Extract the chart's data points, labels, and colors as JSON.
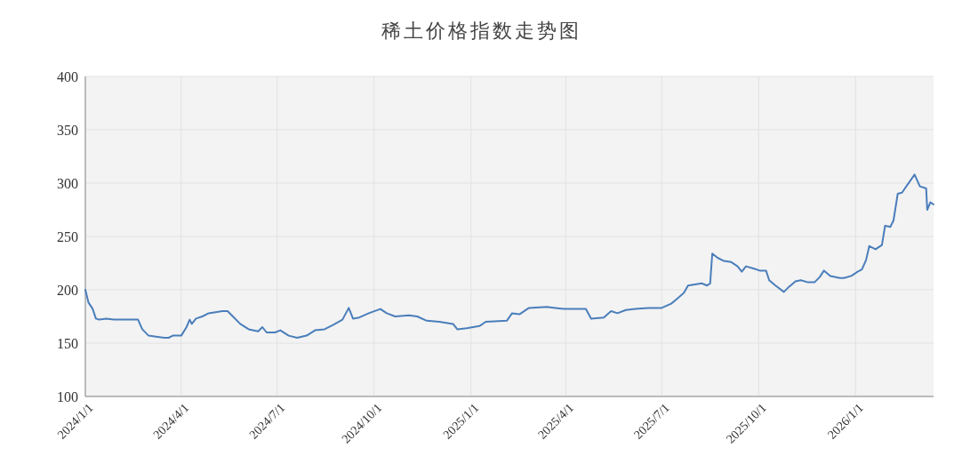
{
  "chart_data": {
    "type": "line",
    "title": "稀土价格指数走势图",
    "x": [
      "2024-01-01",
      "2024-01-04",
      "2024-01-08",
      "2024-01-11",
      "2024-01-14",
      "2024-01-21",
      "2024-01-28",
      "2024-02-20",
      "2024-02-24",
      "2024-03-01",
      "2024-03-08",
      "2024-03-16",
      "2024-03-20",
      "2024-03-24",
      "2024-04-01",
      "2024-04-06",
      "2024-04-09",
      "2024-04-11",
      "2024-04-15",
      "2024-04-21",
      "2024-04-27",
      "2024-05-10",
      "2024-05-15",
      "2024-05-20",
      "2024-05-27",
      "2024-06-04",
      "2024-06-13",
      "2024-06-17",
      "2024-06-21",
      "2024-06-29",
      "2024-07-04",
      "2024-07-12",
      "2024-07-20",
      "2024-07-29",
      "2024-08-06",
      "2024-08-15",
      "2024-08-23",
      "2024-09-01",
      "2024-09-07",
      "2024-09-11",
      "2024-09-17",
      "2024-09-26",
      "2024-10-07",
      "2024-10-13",
      "2024-10-21",
      "2024-11-03",
      "2024-11-11",
      "2024-11-20",
      "2024-12-02",
      "2024-12-15",
      "2024-12-19",
      "2024-12-28",
      "2025-01-09",
      "2025-01-15",
      "2025-02-04",
      "2025-02-09",
      "2025-02-16",
      "2025-02-25",
      "2025-03-14",
      "2025-03-22",
      "2025-03-30",
      "2025-04-20",
      "2025-04-25",
      "2025-05-07",
      "2025-05-14",
      "2025-05-20",
      "2025-05-28",
      "2025-06-06",
      "2025-06-18",
      "2025-07-01",
      "2025-07-10",
      "2025-07-15",
      "2025-07-22",
      "2025-07-26",
      "2025-08-08",
      "2025-08-13",
      "2025-08-16",
      "2025-08-18",
      "2025-08-23",
      "2025-08-29",
      "2025-09-05",
      "2025-09-11",
      "2025-09-15",
      "2025-09-19",
      "2025-09-26",
      "2025-10-02",
      "2025-10-08",
      "2025-10-11",
      "2025-10-17",
      "2025-10-25",
      "2025-10-30",
      "2025-11-05",
      "2025-11-10",
      "2025-11-17",
      "2025-11-23",
      "2025-11-28",
      "2025-12-02",
      "2025-12-08",
      "2025-12-17",
      "2025-12-21",
      "2025-12-28",
      "2026-01-03",
      "2026-01-07",
      "2026-01-11",
      "2026-01-14",
      "2026-01-20",
      "2026-01-26",
      "2026-01-29",
      "2026-02-03",
      "2026-02-06",
      "2026-02-10",
      "2026-02-14",
      "2026-02-26",
      "2026-03-03",
      "2026-03-09",
      "2026-03-10",
      "2026-03-13",
      "2026-03-16"
    ],
    "series": [
      {
        "color": "#4a7ebb",
        "values": [
          200,
          188,
          182,
          173,
          172,
          173,
          172,
          172,
          163,
          157,
          156,
          155,
          155,
          157,
          157,
          165,
          172,
          168,
          173,
          175,
          178,
          180,
          180,
          175,
          168,
          163,
          161,
          165,
          160,
          160,
          162,
          157,
          155,
          157,
          162,
          163,
          167,
          172,
          183,
          173,
          174,
          178,
          182,
          178,
          175,
          176,
          175,
          171,
          170,
          168,
          163,
          164,
          166,
          170,
          171,
          178,
          177,
          183,
          184,
          183,
          182,
          182,
          173,
          174,
          180,
          178,
          181,
          182,
          183,
          183,
          187,
          191,
          197,
          204,
          206,
          204,
          206,
          234,
          230,
          227,
          226,
          222,
          217,
          222,
          220,
          218,
          218,
          209,
          204,
          198,
          203,
          208,
          209,
          207,
          207,
          212,
          218,
          213,
          211,
          211,
          213,
          217,
          219,
          228,
          241,
          238,
          242,
          260,
          259,
          265,
          290,
          291,
          308,
          297,
          295,
          275,
          282,
          280
        ]
      }
    ],
    "xlim": [
      "2024-01-01",
      "2026-03-16"
    ],
    "xticks": [
      {
        "value": "2024-01-01",
        "label": "2024/1/1"
      },
      {
        "value": "2024-04-01",
        "label": "2024/4/1"
      },
      {
        "value": "2024-07-01",
        "label": "2024/7/1"
      },
      {
        "value": "2024-10-01",
        "label": "2024/10/1"
      },
      {
        "value": "2025-01-01",
        "label": "2025/1/1"
      },
      {
        "value": "2025-04-01",
        "label": "2025/4/1"
      },
      {
        "value": "2025-07-01",
        "label": "2025/7/1"
      },
      {
        "value": "2025-10-01",
        "label": "2025/10/1"
      },
      {
        "value": "2026-01-01",
        "label": "2026/1/1"
      }
    ],
    "ylim": [
      100,
      400
    ],
    "yticks": [
      100,
      150,
      200,
      250,
      300,
      350,
      400
    ],
    "grid": true,
    "line_style": "solid"
  }
}
